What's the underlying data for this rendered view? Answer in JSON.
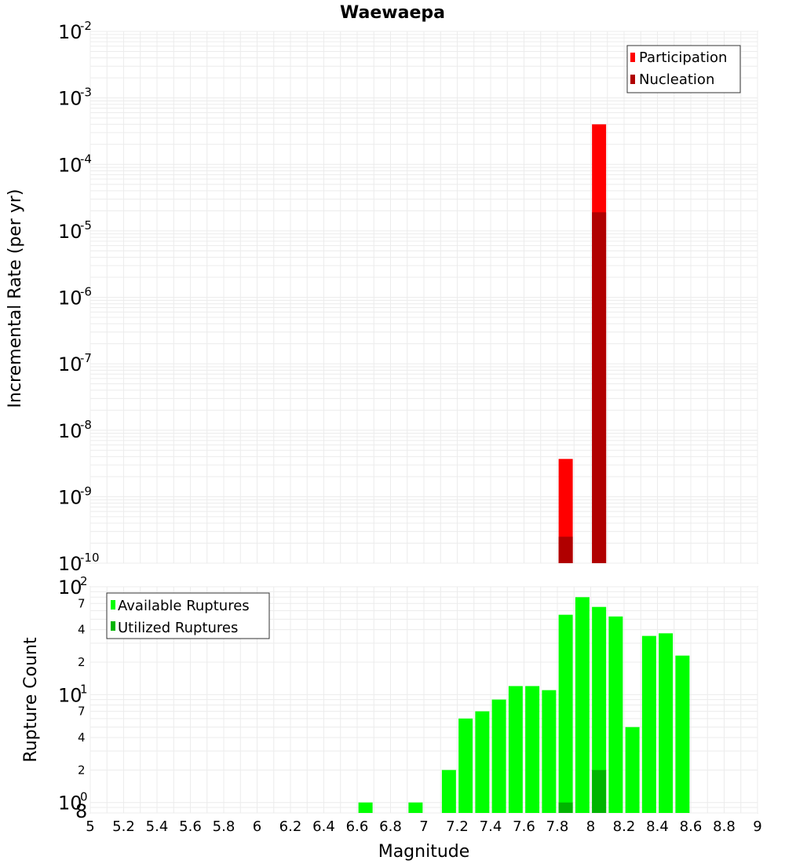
{
  "chart_data": [
    {
      "type": "bar",
      "title": "Waewaepa",
      "xlabel": "",
      "ylabel": "Incremental Rate (per yr)",
      "yscale": "log",
      "xlim": [
        5,
        9
      ],
      "ylim": [
        1e-10,
        0.01
      ],
      "grid": true,
      "legend_position": "top-right",
      "y_ticks": [
        {
          "base": "10",
          "exp": "-10",
          "value": 1e-10
        },
        {
          "base": "10",
          "exp": "-9",
          "value": 1e-09
        },
        {
          "base": "10",
          "exp": "-8",
          "value": 1e-08
        },
        {
          "base": "10",
          "exp": "-7",
          "value": 1e-07
        },
        {
          "base": "10",
          "exp": "-6",
          "value": 1e-06
        },
        {
          "base": "10",
          "exp": "-5",
          "value": 1e-05
        },
        {
          "base": "10",
          "exp": "-4",
          "value": 0.0001
        },
        {
          "base": "10",
          "exp": "-3",
          "value": 0.001
        },
        {
          "base": "10",
          "exp": "-2",
          "value": 0.01
        }
      ],
      "series": [
        {
          "name": "Participation",
          "color": "#ff0000",
          "x": [
            7.85,
            8.05
          ],
          "values": [
            3.7e-09,
            0.0004
          ]
        },
        {
          "name": "Nucleation",
          "color": "#b00000",
          "x": [
            7.85,
            8.05
          ],
          "values": [
            2.5e-10,
            1.9e-05
          ]
        }
      ]
    },
    {
      "type": "bar",
      "title": "",
      "xlabel": "Magnitude",
      "ylabel": "Rupture Count",
      "yscale": "log",
      "xlim": [
        5,
        9
      ],
      "ylim": [
        0.8,
        100
      ],
      "grid": true,
      "legend_position": "top-left",
      "x_ticks": [
        "5",
        "5.2",
        "5.4",
        "5.6",
        "5.8",
        "6",
        "6.2",
        "6.4",
        "6.6",
        "6.8",
        "7",
        "7.2",
        "7.4",
        "7.6",
        "7.8",
        "8",
        "8.2",
        "8.4",
        "8.6",
        "8.8",
        "9"
      ],
      "y_major_ticks": [
        {
          "base": "10",
          "exp": "0",
          "value": 1
        },
        {
          "base": "10",
          "exp": "1",
          "value": 10
        },
        {
          "base": "10",
          "exp": "2",
          "value": 100
        }
      ],
      "y_minor_ticks": [
        {
          "label": "8",
          "value": 0.8
        },
        {
          "label": "2",
          "value": 2
        },
        {
          "label": "4",
          "value": 4
        },
        {
          "label": "7",
          "value": 7
        },
        {
          "label": "2",
          "value": 20
        },
        {
          "label": "4",
          "value": 40
        },
        {
          "label": "7",
          "value": 70
        }
      ],
      "series": [
        {
          "name": "Available Ruptures",
          "color": "#00ff00",
          "x": [
            6.65,
            6.95,
            7.15,
            7.25,
            7.35,
            7.45,
            7.55,
            7.65,
            7.75,
            7.85,
            7.95,
            8.05,
            8.15,
            8.25,
            8.35,
            8.45,
            8.55
          ],
          "values": [
            1,
            1,
            2,
            6,
            7,
            9,
            12,
            12,
            11,
            55,
            80,
            65,
            53,
            5,
            35,
            37,
            23
          ]
        },
        {
          "name": "Utilized Ruptures",
          "color": "#00b400",
          "x": [
            7.85,
            8.05
          ],
          "values": [
            1,
            2
          ]
        }
      ]
    }
  ]
}
